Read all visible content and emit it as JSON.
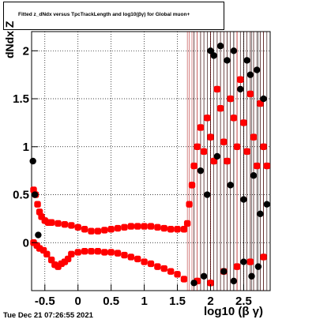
{
  "chart_data": {
    "type": "scatter",
    "title": "Fitted z_dNdx versus TpcTrackLength and log10(βγ) for Global muon+",
    "xlabel": "log10 (β γ)",
    "ylabel": "dNdx Z",
    "xlim": [
      -0.7,
      2.9
    ],
    "ylim": [
      -0.5,
      2.2
    ],
    "x_ticks": [
      "-0.5",
      "0",
      "0.5",
      "1",
      "1.5",
      "2",
      "2.5"
    ],
    "y_ticks": [
      "0",
      "0.5",
      "1",
      "1.5",
      "2"
    ],
    "grid": true,
    "series": [
      {
        "color": "#ff0000",
        "points": [
          [
            -0.67,
            0.55
          ],
          [
            -0.64,
            0.5
          ],
          [
            -0.61,
            0.4
          ],
          [
            -0.58,
            0.32
          ],
          [
            -0.55,
            0.27
          ],
          [
            -0.5,
            0.23
          ],
          [
            -0.45,
            0.21
          ],
          [
            -0.4,
            0.21
          ],
          [
            -0.3,
            0.2
          ],
          [
            -0.2,
            0.19
          ],
          [
            -0.1,
            0.18
          ],
          [
            0.0,
            0.16
          ],
          [
            0.1,
            0.14
          ],
          [
            0.2,
            0.12
          ],
          [
            0.3,
            0.12
          ],
          [
            0.4,
            0.13
          ],
          [
            0.5,
            0.14
          ],
          [
            0.6,
            0.15
          ],
          [
            0.7,
            0.16
          ],
          [
            0.8,
            0.17
          ],
          [
            0.9,
            0.17
          ],
          [
            1.0,
            0.17
          ],
          [
            1.1,
            0.17
          ],
          [
            1.2,
            0.16
          ],
          [
            1.3,
            0.15
          ],
          [
            1.4,
            0.14
          ],
          [
            1.5,
            0.14
          ],
          [
            1.6,
            0.14
          ],
          [
            1.65,
            0.2
          ],
          [
            1.68,
            0.4
          ],
          [
            1.72,
            0.6
          ],
          [
            1.75,
            0.8
          ],
          [
            1.8,
            1.0
          ],
          [
            1.85,
            1.2
          ],
          [
            1.9,
            0.95
          ],
          [
            1.95,
            1.3
          ],
          [
            2.0,
            1.1
          ],
          [
            2.05,
            0.85
          ],
          [
            2.1,
            1.6
          ],
          [
            2.15,
            1.4
          ],
          [
            2.2,
            1.05
          ],
          [
            2.25,
            0.85
          ],
          [
            2.3,
            1.5
          ],
          [
            2.35,
            1.3
          ],
          [
            2.4,
            1.0
          ],
          [
            2.45,
            1.7
          ],
          [
            2.5,
            1.25
          ],
          [
            2.55,
            0.95
          ],
          [
            2.6,
            1.55
          ],
          [
            2.65,
            1.1
          ],
          [
            2.7,
            0.8
          ],
          [
            2.75,
            1.45
          ],
          [
            2.8,
            1.0
          ],
          [
            2.85,
            0.8
          ]
        ]
      },
      {
        "color": "#ff0000",
        "points": [
          [
            -0.67,
            0.0
          ],
          [
            -0.62,
            -0.03
          ],
          [
            -0.58,
            -0.06
          ],
          [
            -0.52,
            -0.08
          ],
          [
            -0.47,
            -0.12
          ],
          [
            -0.4,
            -0.18
          ],
          [
            -0.35,
            -0.23
          ],
          [
            -0.3,
            -0.25
          ],
          [
            -0.25,
            -0.22
          ],
          [
            -0.2,
            -0.2
          ],
          [
            -0.15,
            -0.17
          ],
          [
            -0.1,
            -0.12
          ],
          [
            0.0,
            -0.1
          ],
          [
            0.1,
            -0.09
          ],
          [
            0.2,
            -0.09
          ],
          [
            0.3,
            -0.09
          ],
          [
            0.4,
            -0.1
          ],
          [
            0.5,
            -0.1
          ],
          [
            0.6,
            -0.11
          ],
          [
            0.7,
            -0.13
          ],
          [
            0.8,
            -0.15
          ],
          [
            0.9,
            -0.17
          ],
          [
            1.0,
            -0.2
          ],
          [
            1.1,
            -0.22
          ],
          [
            1.2,
            -0.25
          ],
          [
            1.3,
            -0.27
          ],
          [
            1.4,
            -0.3
          ],
          [
            1.5,
            -0.33
          ],
          [
            1.6,
            -0.38
          ],
          [
            1.8,
            -0.4
          ],
          [
            2.0,
            -0.42
          ],
          [
            2.2,
            -0.3
          ],
          [
            2.4,
            -0.25
          ],
          [
            2.6,
            -0.2
          ],
          [
            2.8,
            -0.15
          ]
        ]
      },
      {
        "color": "#000000",
        "points": [
          [
            -0.68,
            0.85
          ],
          [
            -0.65,
            0.5
          ],
          [
            -0.6,
            0.08
          ],
          [
            1.75,
            -0.42
          ],
          [
            1.9,
            -0.35
          ],
          [
            2.0,
            2.0
          ],
          [
            2.05,
            1.95
          ],
          [
            2.15,
            2.05
          ],
          [
            2.25,
            1.9
          ],
          [
            2.35,
            2.0
          ],
          [
            2.45,
            1.6
          ],
          [
            2.55,
            1.9
          ],
          [
            2.6,
            1.75
          ],
          [
            2.7,
            1.8
          ],
          [
            2.8,
            1.5
          ],
          [
            1.85,
            0.75
          ],
          [
            1.95,
            0.5
          ],
          [
            2.1,
            0.9
          ],
          [
            2.3,
            0.6
          ],
          [
            2.5,
            0.45
          ],
          [
            2.65,
            0.7
          ],
          [
            2.75,
            0.3
          ],
          [
            2.2,
            -0.3
          ],
          [
            2.35,
            -0.4
          ],
          [
            2.5,
            -0.2
          ],
          [
            2.62,
            -0.35
          ],
          [
            2.72,
            -0.25
          ],
          [
            2.85,
            0.4
          ]
        ]
      }
    ]
  },
  "footer": {
    "datestamp": "Tue Dec 21 07:26:55 2021"
  }
}
